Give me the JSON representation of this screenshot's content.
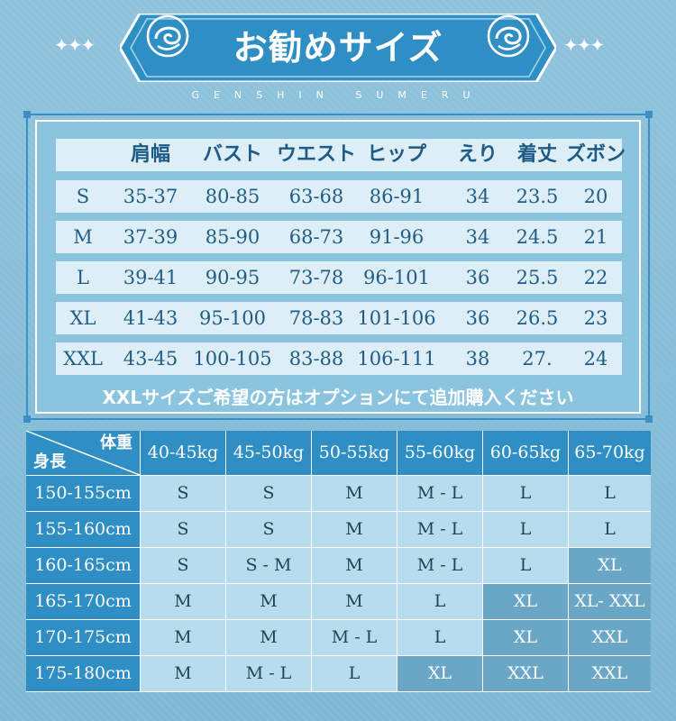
{
  "header": {
    "title": "お勧めサイズ",
    "subtitle": "GENSHIN SUMERU",
    "sparkles": "✦✦✦"
  },
  "colors": {
    "accent": "#2f8fc5",
    "accent_dark": "#1d6fa3",
    "light_cell": "#b7dcee",
    "text_dark": "#1f5d86"
  },
  "size_chart": {
    "columns": [
      "",
      "肩幅",
      "バスト",
      "ウエスト",
      "ヒップ",
      "えり",
      "着丈",
      "ズボン"
    ],
    "rows": [
      {
        "size": "S",
        "values": [
          "35-37",
          "80-85",
          "63-68",
          "86-91",
          "34",
          "23.5",
          "20"
        ]
      },
      {
        "size": "M",
        "values": [
          "37-39",
          "85-90",
          "68-73",
          "91-96",
          "34",
          "24.5",
          "21"
        ]
      },
      {
        "size": "L",
        "values": [
          "39-41",
          "90-95",
          "73-78",
          "96-101",
          "36",
          "25.5",
          "22"
        ]
      },
      {
        "size": "XL",
        "values": [
          "41-43",
          "95-100",
          "78-83",
          "101-106",
          "36",
          "26.5",
          "23"
        ]
      },
      {
        "size": "XXL",
        "values": [
          "43-45",
          "100-105",
          "83-88",
          "106-111",
          "38",
          "27.",
          "24"
        ]
      }
    ],
    "note": "XXLサイズご希望の方はオプションにて追加購入ください"
  },
  "recommend": {
    "weight_label": "体重",
    "height_label": "身長",
    "weights": [
      "40-45kg",
      "45-50kg",
      "50-55kg",
      "55-60kg",
      "60-65kg",
      "65-70kg"
    ],
    "rows": [
      {
        "height": "150-155cm",
        "sizes": [
          "S",
          "S",
          "M",
          "M - L",
          "L",
          "L"
        ]
      },
      {
        "height": "155-160cm",
        "sizes": [
          "S",
          "S",
          "M",
          "M - L",
          "L",
          "L"
        ]
      },
      {
        "height": "160-165cm",
        "sizes": [
          "S",
          "S - M",
          "M",
          "M - L",
          "L",
          "XL"
        ]
      },
      {
        "height": "165-170cm",
        "sizes": [
          "M",
          "M",
          "M",
          "L",
          "XL",
          "XL- XXL"
        ]
      },
      {
        "height": "170-175cm",
        "sizes": [
          "M",
          "M",
          "M - L",
          "L",
          "XL",
          "XXL"
        ]
      },
      {
        "height": "175-180cm",
        "sizes": [
          "M",
          "M - L",
          "L",
          "XL",
          "XXL",
          "XXL"
        ]
      }
    ]
  }
}
